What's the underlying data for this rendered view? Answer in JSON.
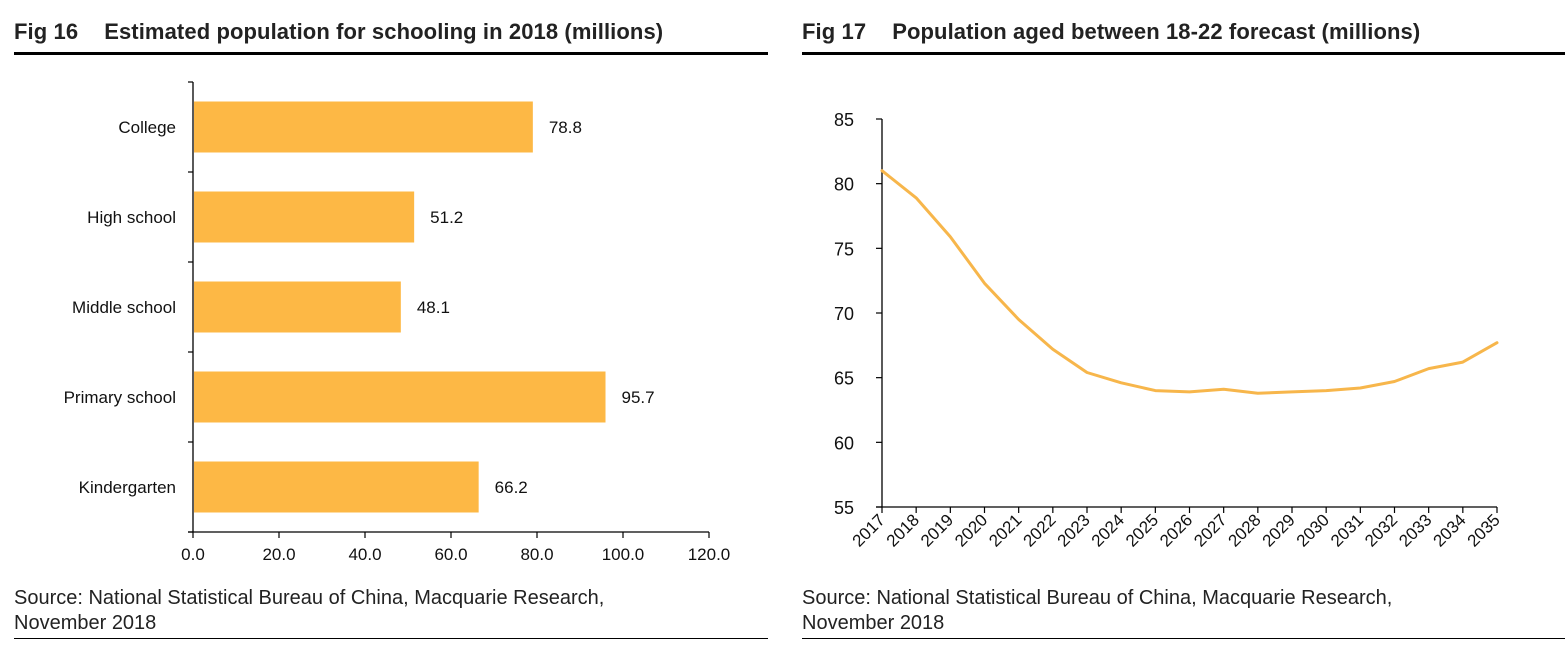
{
  "figures": [
    {
      "fig_label": "Fig 16",
      "title": "Estimated population for schooling in 2018 (millions)",
      "source_line1": "Source: National Statistical Bureau of China, Macquarie Research,",
      "source_line2": "November 2018"
    },
    {
      "fig_label": "Fig 17",
      "title": "Population aged between 18-22 forecast (millions)",
      "source_line1": "Source: National Statistical Bureau of China, Macquarie Research,",
      "source_line2": "November 2018"
    }
  ],
  "chart_data": [
    {
      "type": "bar",
      "orientation": "horizontal",
      "title": "Estimated population for schooling in 2018 (millions)",
      "categories": [
        "College",
        "High school",
        "Middle school",
        "Primary school",
        "Kindergarten"
      ],
      "values": [
        78.8,
        51.2,
        48.1,
        95.7,
        66.2
      ],
      "value_labels": [
        "78.8",
        "51.2",
        "48.1",
        "95.7",
        "66.2"
      ],
      "xlabel": "",
      "ylabel": "",
      "xlim": [
        0,
        120
      ],
      "xticks": [
        0,
        20,
        40,
        60,
        80,
        100,
        120
      ],
      "xtick_labels": [
        "0.0",
        "20.0",
        "40.0",
        "60.0",
        "80.0",
        "100.0",
        "120.0"
      ],
      "grid": false,
      "legend": "none",
      "color": "#FDB845"
    },
    {
      "type": "line",
      "title": "Population aged between 18-22 forecast (millions)",
      "x": [
        "2017",
        "2018",
        "2019",
        "2020",
        "2021",
        "2022",
        "2023",
        "2024",
        "2025",
        "2026",
        "2027",
        "2028",
        "2029",
        "2030",
        "2031",
        "2032",
        "2033",
        "2034",
        "2035"
      ],
      "series": [
        {
          "name": "Population aged 18-22",
          "values": [
            81.0,
            78.9,
            75.9,
            72.3,
            69.5,
            67.2,
            65.4,
            64.6,
            64.0,
            63.9,
            64.1,
            63.8,
            63.9,
            64.0,
            64.2,
            64.7,
            65.7,
            66.2,
            67.7
          ],
          "color": "#F7B64B"
        }
      ],
      "xlabel": "",
      "ylabel": "",
      "ylim": [
        55,
        85
      ],
      "yticks": [
        55,
        60,
        65,
        70,
        75,
        80,
        85
      ],
      "ytick_labels": [
        "55",
        "60",
        "65",
        "70",
        "75",
        "80",
        "85"
      ],
      "grid": false,
      "legend": "none"
    }
  ]
}
